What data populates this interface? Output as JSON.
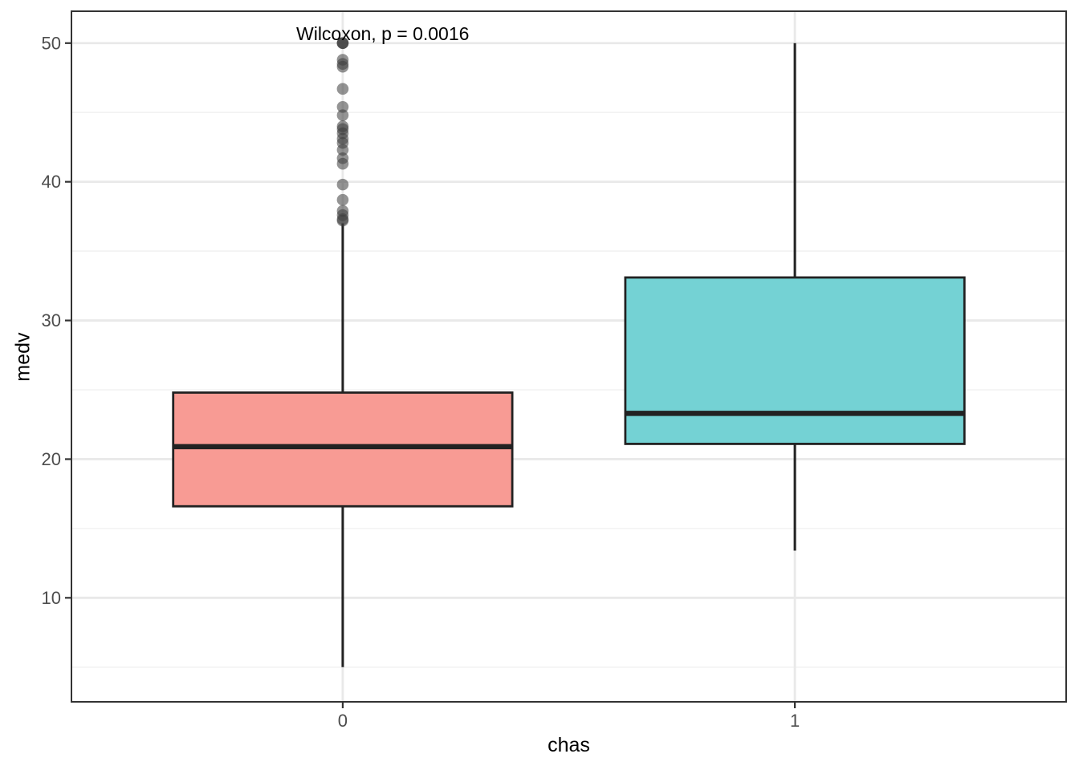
{
  "chart_data": {
    "type": "box",
    "annotation": "Wilcoxon, p = 0.0016",
    "xlabel": "chas",
    "ylabel": "medv",
    "categories": [
      "0",
      "1"
    ],
    "yticks": [
      10,
      20,
      30,
      40,
      50
    ],
    "ylim": [
      2.5,
      52.3
    ],
    "grid": true,
    "legend": "none",
    "stat_test": {
      "method": "Wilcoxon",
      "p_value": 0.0016
    },
    "series": [
      {
        "category": "0",
        "fill": "#F89B94",
        "whisker_low": 5.0,
        "q1": 16.6,
        "median": 20.9,
        "q3": 24.8,
        "whisker_high": 37.0,
        "outliers": [
          50,
          50,
          50,
          48.8,
          48.5,
          48.3,
          46.7,
          45.4,
          44.8,
          44.0,
          43.8,
          43.5,
          43.1,
          42.8,
          42.3,
          41.7,
          41.3,
          39.8,
          38.7,
          37.9,
          37.6,
          37.3,
          37.2
        ]
      },
      {
        "category": "1",
        "fill": "#74D2D4",
        "whisker_low": 13.4,
        "q1": 21.1,
        "median": 23.3,
        "q3": 33.1,
        "whisker_high": 50.0,
        "outliers": []
      }
    ],
    "colors": {
      "grid_major": "#E9E9E9",
      "grid_minor": "#F2F2F2",
      "panel_border": "#333333",
      "axis_tick": "#333333",
      "axis_text": "#4D4D4D",
      "axis_title": "#000000",
      "box_stroke": "#222222",
      "outlier": "#3D3D3D"
    }
  }
}
